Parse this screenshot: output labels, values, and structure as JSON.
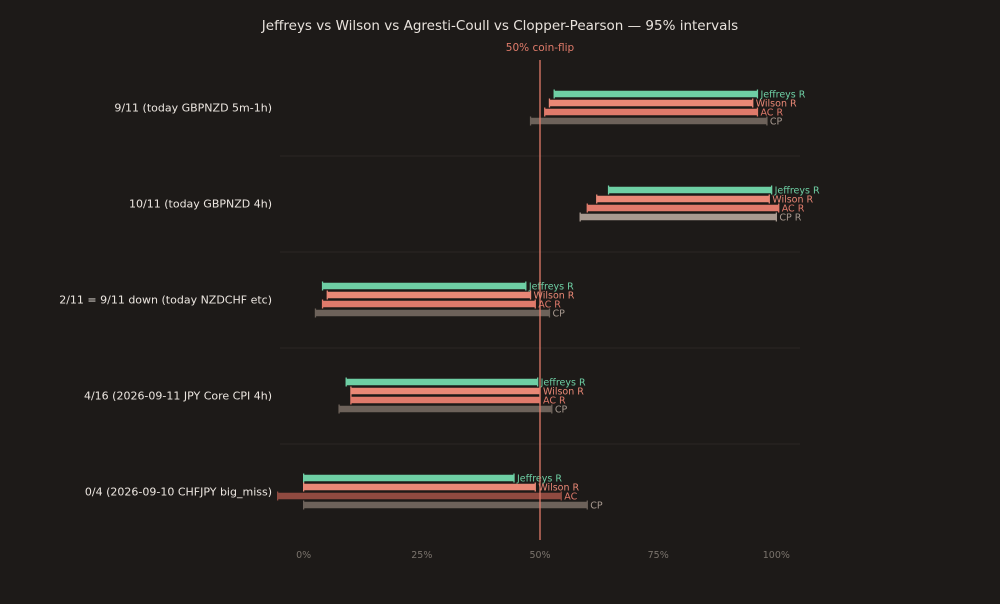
{
  "chart_data": {
    "type": "bar",
    "orientation": "horizontal",
    "chart_subtype": "interval",
    "title": "Jeffreys vs Wilson vs Agresti-Coull vs Clopper-Pearson — 95% intervals",
    "xlabel": "",
    "ylabel": "",
    "xlim": [
      -0.05,
      1.05
    ],
    "x_ticks": [
      {
        "value": 0,
        "label": "0%"
      },
      {
        "value": 0.25,
        "label": "25%"
      },
      {
        "value": 0.5,
        "label": "50%"
      },
      {
        "value": 0.75,
        "label": "75%"
      },
      {
        "value": 1.0,
        "label": "100%"
      }
    ],
    "reference_line": {
      "value": 0.5,
      "label": "50% coin-flip",
      "color": "#e07b6a"
    },
    "grid": false,
    "colors": {
      "background": "#1d1a18",
      "title": "#e8e2dc",
      "category_label": "#ece6e0",
      "tick_label": "#7a736c",
      "separator": "#2b2724",
      "Jeffreys": "#6ecfa4",
      "Wilson": "#e98876",
      "AC": "#e07a6b",
      "AC_clipped": "#8f4a40",
      "CP": "#6d625a",
      "CP_highlight": "#a89a90",
      "Jeffreys_label": "#6ecfa4",
      "Wilson_label": "#e98876",
      "AC_label": "#e07a6b",
      "CP_label": "#a89a90"
    },
    "categories": [
      "9/11 (today GBPNZD 5m-1h)",
      "10/11 (today GBPNZD 4h)",
      "2/11 = 9/11 down (today NZDCHF etc)",
      "4/16 (2026-09-11 JPY Core CPI 4h)",
      "0/4 (2026-09-10 CHFJPY big_miss)"
    ],
    "groups": [
      {
        "category": "9/11 (today GBPNZD 5m-1h)",
        "intervals": [
          {
            "method": "Jeffreys",
            "low": 0.53,
            "high": 0.96,
            "label": "Jeffreys R"
          },
          {
            "method": "Wilson",
            "low": 0.52,
            "high": 0.95,
            "label": "Wilson R"
          },
          {
            "method": "AC",
            "low": 0.51,
            "high": 0.96,
            "label": "AC R"
          },
          {
            "method": "CP",
            "low": 0.48,
            "high": 0.98,
            "label": "CP"
          }
        ]
      },
      {
        "category": "10/11 (today GBPNZD 4h)",
        "intervals": [
          {
            "method": "Jeffreys",
            "low": 0.645,
            "high": 0.99,
            "label": "Jeffreys R"
          },
          {
            "method": "Wilson",
            "low": 0.62,
            "high": 0.985,
            "label": "Wilson R"
          },
          {
            "method": "AC",
            "low": 0.6,
            "high": 1.005,
            "label": "AC R"
          },
          {
            "method": "CP",
            "low": 0.585,
            "high": 1.0,
            "label": "CP R",
            "highlight": true
          }
        ]
      },
      {
        "category": "2/11 = 9/11 down (today NZDCHF etc)",
        "intervals": [
          {
            "method": "Jeffreys",
            "low": 0.04,
            "high": 0.47,
            "label": "Jeffreys R"
          },
          {
            "method": "Wilson",
            "low": 0.05,
            "high": 0.48,
            "label": "Wilson R"
          },
          {
            "method": "AC",
            "low": 0.04,
            "high": 0.49,
            "label": "AC R"
          },
          {
            "method": "CP",
            "low": 0.025,
            "high": 0.52,
            "label": "CP"
          }
        ]
      },
      {
        "category": "4/16 (2026-09-11 JPY Core CPI 4h)",
        "intervals": [
          {
            "method": "Jeffreys",
            "low": 0.09,
            "high": 0.495,
            "label": "Jeffreys R"
          },
          {
            "method": "Wilson",
            "low": 0.1,
            "high": 0.5,
            "label": "Wilson R"
          },
          {
            "method": "AC",
            "low": 0.1,
            "high": 0.5,
            "label": "AC R"
          },
          {
            "method": "CP",
            "low": 0.075,
            "high": 0.525,
            "label": "CP"
          }
        ]
      },
      {
        "category": "0/4 (2026-09-10 CHFJPY big_miss)",
        "intervals": [
          {
            "method": "Jeffreys",
            "low": 0.0,
            "high": 0.445,
            "label": "Jeffreys R"
          },
          {
            "method": "Wilson",
            "low": 0.0,
            "high": 0.49,
            "label": "Wilson R"
          },
          {
            "method": "AC",
            "low": -0.055,
            "high": 0.545,
            "label": "AC",
            "clipped": true
          },
          {
            "method": "CP",
            "low": 0.0,
            "high": 0.6,
            "label": "CP"
          }
        ]
      }
    ]
  }
}
